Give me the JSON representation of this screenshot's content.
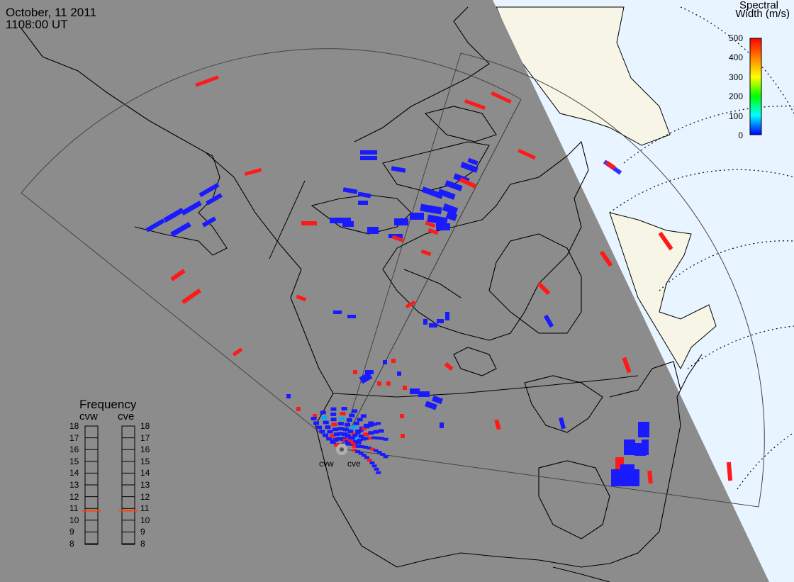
{
  "header": {
    "date": "October, 11 2011",
    "time": "1108:00 UT"
  },
  "colorbar": {
    "title_line1": "Spectral",
    "title_line2": "Width (m/s)",
    "ticks": [
      "500",
      "400",
      "300",
      "200",
      "100",
      "0"
    ],
    "colors": [
      "#ff0000",
      "#ff8000",
      "#ffff00",
      "#00ff00",
      "#00ffff",
      "#0000ff"
    ]
  },
  "radars": {
    "west": "cvw",
    "east": "cve"
  },
  "frequency": {
    "title": "Frequency",
    "left_label": "cvw",
    "right_label": "cve",
    "ticks": [
      "18",
      "17",
      "16",
      "15",
      "14",
      "13",
      "12",
      "11",
      "10",
      "9",
      "8"
    ],
    "cvw_value": 10.8,
    "cve_value": 10.8,
    "marker_color": "#ff4000"
  },
  "colors": {
    "night": "#8c8c8c",
    "day_ocean": "#e8f4ff",
    "day_land": "#f7f5e5",
    "low": "#1a1aff",
    "high": "#ff1a1a"
  }
}
